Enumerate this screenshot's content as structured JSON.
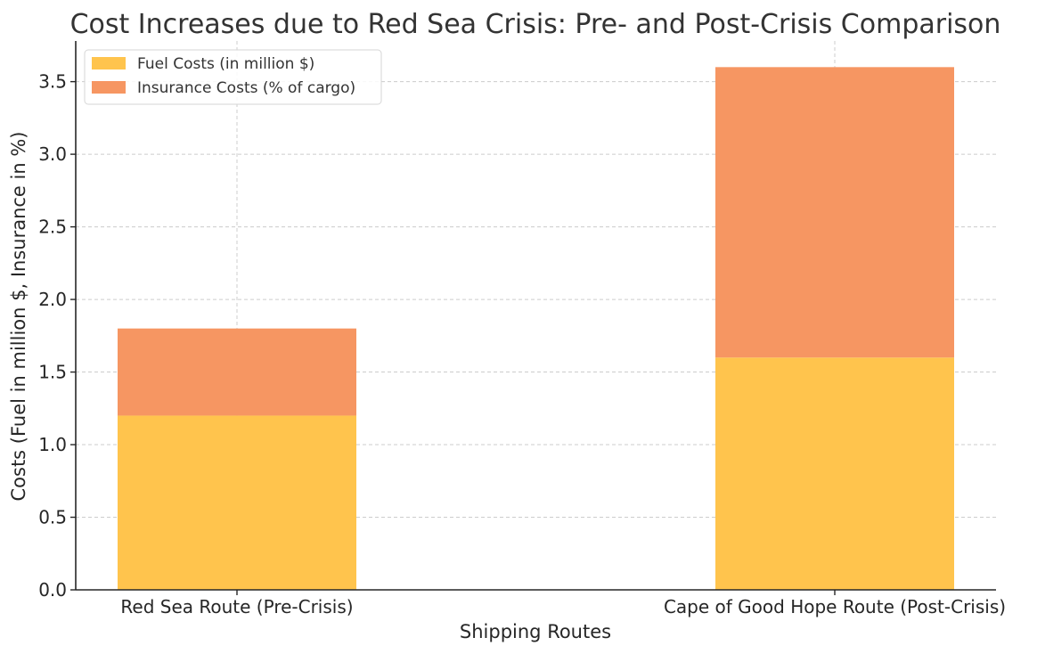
{
  "chart_data": {
    "type": "bar",
    "stacked": true,
    "title": "Cost Increases due to Red Sea Crisis: Pre- and Post-Crisis Comparison",
    "xlabel": "Shipping Routes",
    "ylabel": "Costs (Fuel in million $, Insurance in %)",
    "categories": [
      "Red Sea Route (Pre-Crisis)",
      "Cape of Good Hope Route (Post-Crisis)"
    ],
    "series": [
      {
        "name": "Fuel Costs (in million $)",
        "values": [
          1.2,
          1.6
        ],
        "color": "#ffc44d"
      },
      {
        "name": "Insurance Costs (% of cargo)",
        "values": [
          0.6,
          2.0
        ],
        "color": "#f69662"
      }
    ],
    "ylim": [
      0,
      3.78
    ],
    "yticks": [
      "0.0",
      "0.5",
      "1.0",
      "1.5",
      "2.0",
      "2.5",
      "3.0",
      "3.5"
    ],
    "grid": true,
    "legend_position": "top-left"
  }
}
